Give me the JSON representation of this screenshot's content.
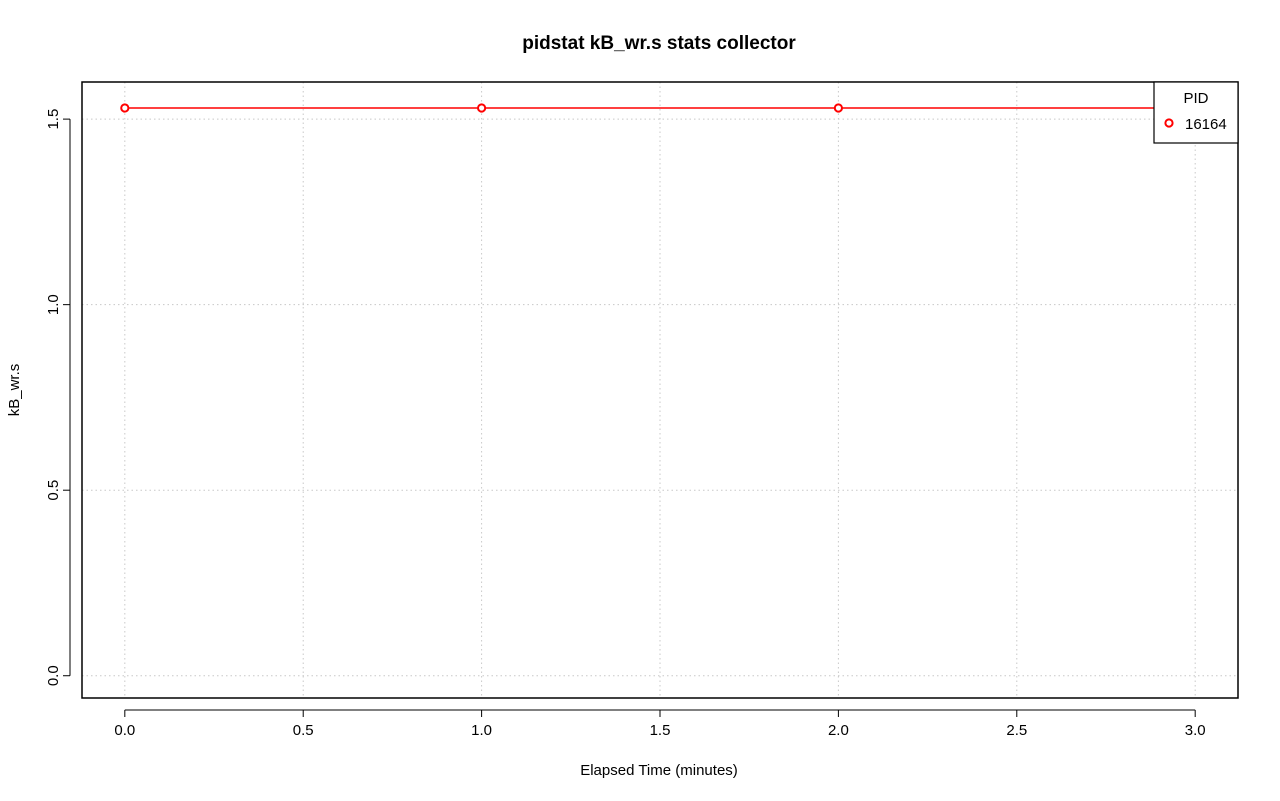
{
  "chart_data": {
    "type": "line",
    "title": "pidstat kB_wr.s stats collector",
    "xlabel": "Elapsed Time (minutes)",
    "ylabel": "kB_wr.s",
    "xlim": [
      -0.12,
      3.12
    ],
    "ylim": [
      -0.06,
      1.6
    ],
    "x_ticks": [
      0.0,
      0.5,
      1.0,
      1.5,
      2.0,
      2.5,
      3.0
    ],
    "x_tick_labels": [
      "0.0",
      "0.5",
      "1.0",
      "1.5",
      "2.0",
      "2.5",
      "3.0"
    ],
    "y_ticks": [
      0.0,
      0.5,
      1.0,
      1.5
    ],
    "y_tick_labels": [
      "0.0",
      "0.5",
      "1.0",
      "1.5"
    ],
    "grid": true,
    "legend": {
      "title": "PID",
      "placement": "top-right"
    },
    "series": [
      {
        "name": "16164",
        "color": "#ff0000",
        "x": [
          0,
          1,
          2,
          3
        ],
        "y": [
          1.53,
          1.53,
          1.53,
          1.53
        ]
      }
    ]
  }
}
